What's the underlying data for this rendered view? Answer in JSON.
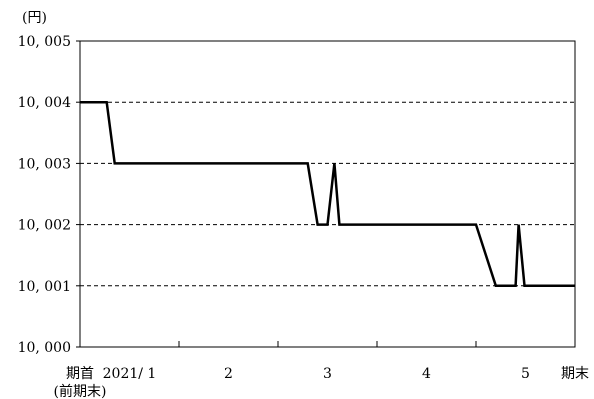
{
  "chart_data": {
    "type": "line",
    "title": "",
    "xlabel": "",
    "ylabel": "(円)",
    "ylim": [
      10000,
      10005
    ],
    "yticks": [
      {
        "value": 10000,
        "label": "10, 000"
      },
      {
        "value": 10001,
        "label": "10, 001"
      },
      {
        "value": 10002,
        "label": "10, 002"
      },
      {
        "value": 10003,
        "label": "10, 003"
      },
      {
        "value": 10004,
        "label": "10, 004"
      },
      {
        "value": 10005,
        "label": "10, 005"
      }
    ],
    "grid": "horizontal-dashed",
    "xticks": [
      {
        "pos": 0.0,
        "label": "期首",
        "label2": "(前期末)"
      },
      {
        "pos": 0.5,
        "label": "2021/ 1"
      },
      {
        "pos": 1.5,
        "label": "2"
      },
      {
        "pos": 2.5,
        "label": "3"
      },
      {
        "pos": 3.5,
        "label": "4"
      },
      {
        "pos": 4.5,
        "label": "5"
      },
      {
        "pos": 5.0,
        "label": "期末"
      }
    ],
    "tick_marks": [
      0,
      1,
      2,
      3,
      4,
      5
    ],
    "xlim": [
      0,
      5
    ],
    "series": [
      {
        "color": "#000000",
        "points": [
          [
            0.0,
            10004
          ],
          [
            0.27,
            10004
          ],
          [
            0.35,
            10003
          ],
          [
            2.3,
            10003
          ],
          [
            2.4,
            10002
          ],
          [
            2.5,
            10002
          ],
          [
            2.57,
            10003
          ],
          [
            2.62,
            10002
          ],
          [
            4.0,
            10002
          ],
          [
            4.2,
            10001
          ],
          [
            4.4,
            10001
          ],
          [
            4.43,
            10002
          ],
          [
            4.49,
            10001
          ],
          [
            5.0,
            10001
          ]
        ]
      }
    ]
  }
}
